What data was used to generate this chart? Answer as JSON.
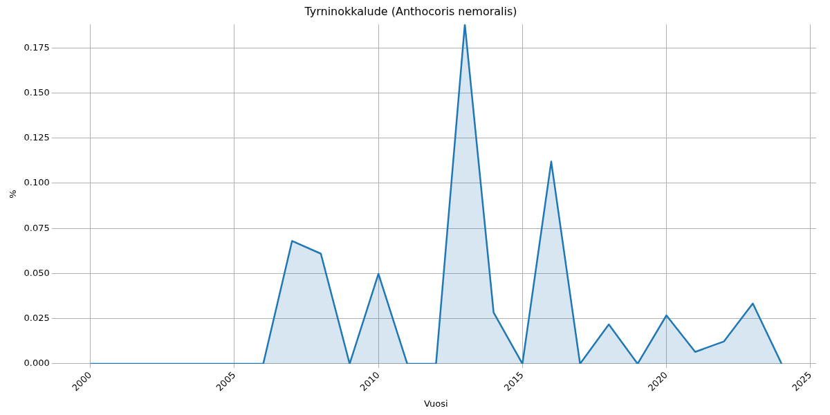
{
  "chart_data": {
    "type": "area",
    "title": "Tyrninokkalude (Anthocoris nemoralis)",
    "xlabel": "Vuosi",
    "ylabel": "%",
    "x": [
      2000,
      2001,
      2002,
      2003,
      2004,
      2005,
      2006,
      2007,
      2008,
      2009,
      2010,
      2011,
      2012,
      2013,
      2014,
      2015,
      2016,
      2017,
      2018,
      2019,
      2020,
      2021,
      2022,
      2023,
      2024
    ],
    "series": [
      {
        "color": "#1f77b4",
        "values": [
          0,
          0,
          0,
          0,
          0,
          0,
          0,
          0.068,
          0.061,
          0,
          0.0498,
          0,
          0,
          0.188,
          0.0284,
          0,
          0.112,
          0,
          0.0218,
          0,
          0.0268,
          0.0066,
          0.0124,
          0.0334,
          0
        ]
      }
    ],
    "xlim": [
      1998.8,
      2025.2
    ],
    "xticks": [
      2000,
      2005,
      2010,
      2015,
      2020,
      2025
    ],
    "ylim": [
      0,
      0.188
    ],
    "yticks": [
      {
        "value": 0,
        "label": "0.000"
      },
      {
        "value": 0.025,
        "label": "0.025"
      },
      {
        "value": 0.05,
        "label": "0.050"
      },
      {
        "value": 0.075,
        "label": "0.075"
      },
      {
        "value": 0.1,
        "label": "0.100"
      },
      {
        "value": 0.125,
        "label": "0.125"
      },
      {
        "value": 0.15,
        "label": "0.150"
      },
      {
        "value": 0.175,
        "label": "0.175"
      }
    ],
    "grid": true,
    "legend": false
  }
}
